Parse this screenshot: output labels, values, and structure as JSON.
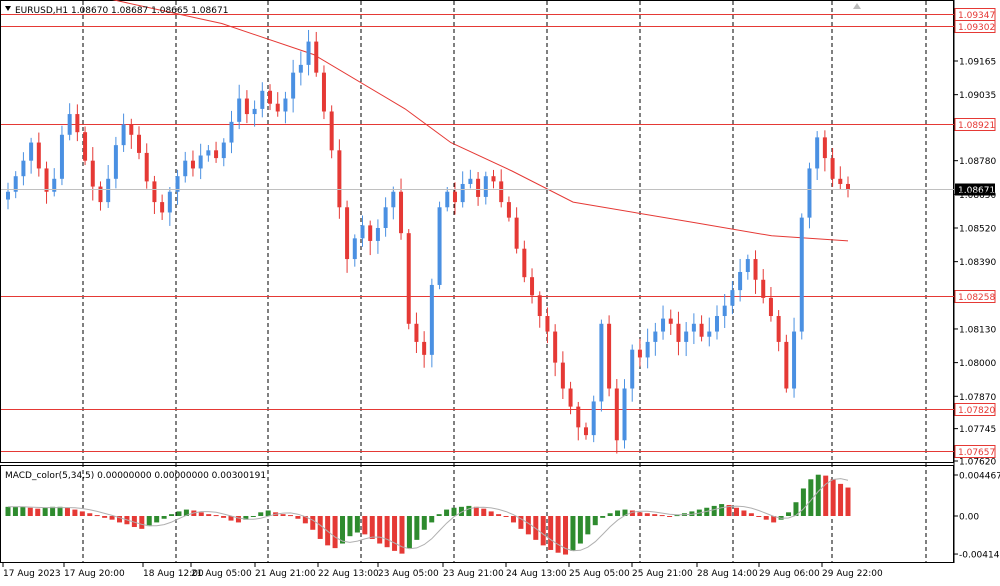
{
  "header": {
    "symbol_line": "EURUSD,H1  1.08670 1.08687 1.08665 1.08671",
    "menu_icon": "triangle-down-icon",
    "close_icon": "triangle-up-icon"
  },
  "macd": {
    "label": "MACD_color(5,34,5) 0.00000000 0.00000000 0.00300191",
    "ticks": [
      "0.0044674",
      "0.00",
      "-0.0041457"
    ]
  },
  "price_axis": {
    "ticks": [
      "1.09165",
      "1.09035",
      "1.08780",
      "1.08650",
      "1.08520",
      "1.08390",
      "1.08130",
      "1.08000",
      "1.07870",
      "1.07745",
      "1.07620"
    ]
  },
  "levels": [
    {
      "label": "1.09347",
      "value": 1.09347
    },
    {
      "label": "1.09302",
      "value": 1.09302
    },
    {
      "label": "1.08921",
      "value": 1.08921
    },
    {
      "label": "1.08258",
      "value": 1.08258
    },
    {
      "label": "1.07820",
      "value": 1.0782
    },
    {
      "label": "1.07657",
      "value": 1.07657
    }
  ],
  "current_price": {
    "label": "1.08671",
    "value": 1.08671
  },
  "time_axis": [
    "17 Aug 2023",
    "17 Aug 20:00",
    "18 Aug 12:00",
    "21 Aug 05:00",
    "21 Aug 21:00",
    "22 Aug 13:00",
    "23 Aug 05:00",
    "23 Aug 21:00",
    "24 Aug 13:00",
    "25 Aug 05:00",
    "25 Aug 21:00",
    "28 Aug 14:00",
    "29 Aug 06:00",
    "29 Aug 22:00"
  ],
  "colors": {
    "bull": "#4a90e2",
    "bear": "#e53935",
    "level": "#e53935",
    "ma": "#e53935",
    "grid": "#000000",
    "macd_up": "#2e8b2e",
    "macd_down": "#e53935",
    "macd_signal": "#b0b0b0",
    "current_line": "#c0c0c0",
    "current_bg": "#000000"
  },
  "ma_points": [
    [
      0,
      1.0951
    ],
    [
      14,
      1.094
    ],
    [
      28,
      1.0931
    ],
    [
      40,
      1.0919
    ],
    [
      52,
      1.0898
    ],
    [
      58,
      1.0885
    ],
    [
      66,
      1.0874
    ],
    [
      74,
      1.0862
    ],
    [
      90,
      1.0854
    ],
    [
      100,
      1.0849
    ],
    [
      110,
      1.0847
    ]
  ],
  "macd_vals": [
    0.001,
    0.001,
    0.001,
    0.0009,
    0.0008,
    0.0009,
    0.001,
    0.001,
    0.0009,
    0.0007,
    0.0005,
    0.0003,
    0.0001,
    -0.0002,
    -0.0004,
    -0.0007,
    -0.0009,
    -0.0012,
    -0.0014,
    -0.0011,
    -0.0007,
    -0.0003,
    0.0002,
    0.0005,
    0.0007,
    0.0006,
    0.0004,
    0.0002,
    0.0001,
    -0.0002,
    -0.0005,
    -0.0007,
    -0.0004,
    0.0,
    0.0004,
    0.0006,
    0.0004,
    0.0002,
    0.0001,
    -0.0003,
    -0.0008,
    -0.0015,
    -0.0025,
    -0.0032,
    -0.0035,
    -0.003,
    -0.0022,
    -0.0018,
    -0.002,
    -0.0025,
    -0.003,
    -0.0034,
    -0.0038,
    -0.0041,
    -0.0035,
    -0.0026,
    -0.0015,
    -0.0007,
    0.0002,
    0.0007,
    0.0009,
    0.001,
    0.0011,
    0.001,
    0.0008,
    0.0005,
    0.0002,
    -0.0001,
    -0.0007,
    -0.0014,
    -0.002,
    -0.0026,
    -0.0032,
    -0.0037,
    -0.004,
    -0.0042,
    -0.0038,
    -0.003,
    -0.002,
    -0.001,
    -0.0002,
    0.0003,
    0.0006,
    0.0007,
    0.0006,
    0.0004,
    0.0003,
    0.0002,
    0.0001,
    0.0,
    0.0001,
    0.0003,
    0.0005,
    0.0007,
    0.0009,
    0.0011,
    0.0013,
    0.0012,
    0.0009,
    0.0006,
    0.0003,
    0.0,
    -0.0004,
    -0.0007,
    -0.0004,
    0.0004,
    0.0015,
    0.003,
    0.004,
    0.0045,
    0.0044,
    0.004,
    0.0035,
    0.0031
  ],
  "price_path": [
    1.0866,
    1.0872,
    1.0878,
    1.0885,
    1.0875,
    1.0866,
    1.0871,
    1.0888,
    1.0896,
    1.0889,
    1.0878,
    1.0868,
    1.0862,
    1.0871,
    1.0884,
    1.0892,
    1.0888,
    1.0881,
    1.087,
    1.0862,
    1.0858,
    1.0866,
    1.0872,
    1.0878,
    1.0875,
    1.088,
    1.0882,
    1.0879,
    1.0885,
    1.0893,
    1.0902,
    1.0896,
    1.0898,
    1.0905,
    1.09,
    1.0897,
    1.0902,
    1.0912,
    1.0915,
    1.0924,
    1.0912,
    1.0897,
    1.0882,
    1.086,
    1.084,
    1.0848,
    1.0853,
    1.0847,
    1.0852,
    1.086,
    1.0866,
    1.085,
    1.0815,
    1.0808,
    1.0803,
    1.083,
    1.086,
    1.0866,
    1.0862,
    1.0869,
    1.0871,
    1.0864,
    1.0872,
    1.087,
    1.0862,
    1.0856,
    1.0844,
    1.0833,
    1.0826,
    1.0818,
    1.0812,
    1.08,
    1.079,
    1.0783,
    1.0775,
    1.0772,
    1.0785,
    1.0815,
    1.079,
    1.077,
    1.079,
    1.0805,
    1.0802,
    1.0808,
    1.0812,
    1.0817,
    1.0815,
    1.0808,
    1.0812,
    1.0815,
    1.081,
    1.0812,
    1.0818,
    1.0822,
    1.0828,
    1.0835,
    1.084,
    1.0832,
    1.0825,
    1.0818,
    1.0808,
    1.079,
    1.0812,
    1.0856,
    1.0875,
    1.0887,
    1.0879,
    1.0871,
    1.0869,
    1.0867
  ]
}
